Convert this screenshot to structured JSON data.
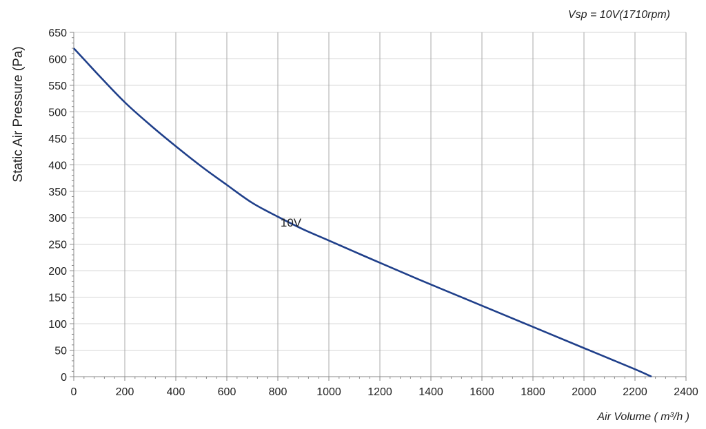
{
  "chart_data": {
    "type": "line",
    "title": "Vsp = 10V(1710rpm)",
    "xlabel": "Air Volume ( m³/h )",
    "ylabel": "Static Air Pressure  (Pa)",
    "xlim": [
      0,
      2400
    ],
    "ylim": [
      0,
      650
    ],
    "xticks": [
      0,
      200,
      400,
      600,
      800,
      1000,
      1200,
      1400,
      1600,
      1800,
      2000,
      2200,
      2400
    ],
    "yticks": [
      0,
      50,
      100,
      150,
      200,
      250,
      300,
      350,
      400,
      450,
      500,
      550,
      600,
      650
    ],
    "grid": "vertical major, horizontal minor",
    "series": [
      {
        "name": "10V",
        "color": "#1f3f8a",
        "x": [
          0,
          100,
          200,
          300,
          400,
          500,
          600,
          700,
          800,
          900,
          1000,
          1200,
          1400,
          1600,
          1800,
          2000,
          2200,
          2265
        ],
        "y": [
          620,
          568,
          518,
          475,
          435,
          397,
          362,
          328,
          302,
          278,
          257,
          215,
          174,
          134,
          94,
          54,
          14,
          0
        ]
      }
    ]
  }
}
